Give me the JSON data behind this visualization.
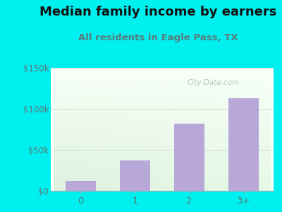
{
  "categories": [
    "0",
    "1",
    "2",
    "3+"
  ],
  "values": [
    12000,
    37000,
    82000,
    113000
  ],
  "bar_color": "#b8a8d8",
  "title": "Median family income by earners",
  "subtitle": "All residents in Eagle Pass, TX",
  "ylim": [
    0,
    150000
  ],
  "yticks": [
    0,
    50000,
    100000,
    150000
  ],
  "ytick_labels": [
    "$0",
    "$50k",
    "$100k",
    "$150k"
  ],
  "outer_bg": "#00efef",
  "title_fontsize": 13,
  "subtitle_fontsize": 9.5,
  "title_color": "#111111",
  "subtitle_color": "#5a7a7a",
  "tick_label_color": "#5a7a7a",
  "watermark": "City-Data.com",
  "watermark_color": "#aabbbb",
  "grid_color": "#ccddcc"
}
